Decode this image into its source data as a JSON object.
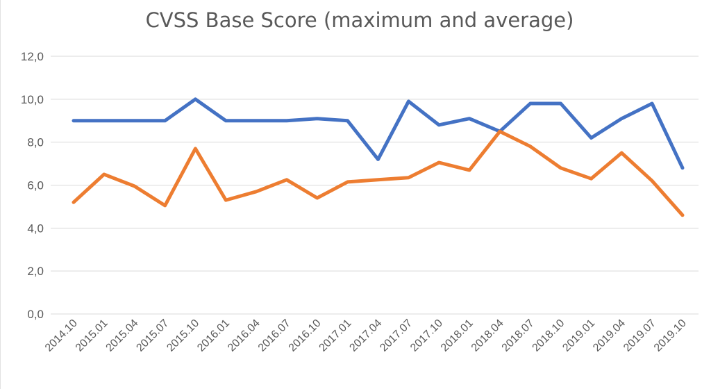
{
  "chart_data": {
    "type": "line",
    "title": "CVSS Base Score (maximum and average)",
    "xlabel": "",
    "ylabel": "",
    "ylim": [
      0,
      12
    ],
    "y_ticks": [
      "0,0",
      "2,0",
      "4,0",
      "6,0",
      "8,0",
      "10,0",
      "12,0"
    ],
    "grid": true,
    "categories": [
      "2014.10",
      "2015.01",
      "2015.04",
      "2015.07",
      "2015.10",
      "2016.01",
      "2016.04",
      "2016.07",
      "2016.10",
      "2017.01",
      "2017.04",
      "2017.07",
      "2017.10",
      "2018.01",
      "2018.04",
      "2018.07",
      "2018.10",
      "2019.01",
      "2019.04",
      "2019.07",
      "2019.10"
    ],
    "series": [
      {
        "color": "#4472c4",
        "values": [
          9.0,
          9.0,
          9.0,
          9.0,
          10.0,
          9.0,
          9.0,
          9.0,
          9.1,
          9.0,
          7.2,
          9.9,
          8.8,
          9.1,
          8.5,
          9.8,
          9.8,
          8.2,
          9.1,
          9.8,
          6.8
        ]
      },
      {
        "color": "#ed7d31",
        "values": [
          5.2,
          6.5,
          5.95,
          5.05,
          7.7,
          5.3,
          5.7,
          6.25,
          5.4,
          6.15,
          6.25,
          6.35,
          7.05,
          6.7,
          8.5,
          7.8,
          6.8,
          6.3,
          7.5,
          6.2,
          4.6
        ]
      }
    ]
  }
}
